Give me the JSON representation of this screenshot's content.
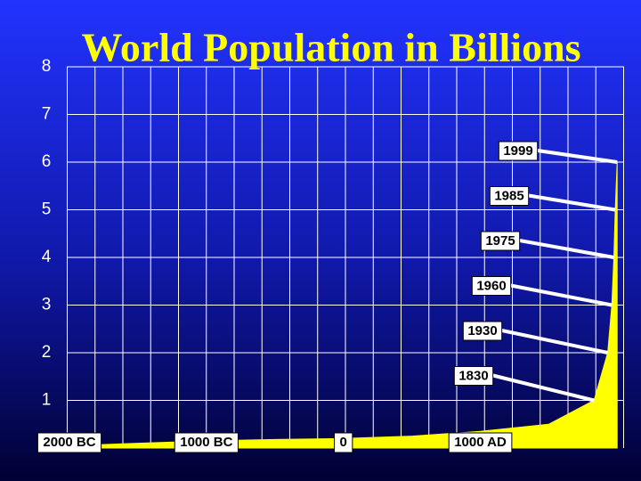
{
  "chart_data": {
    "type": "area",
    "title": "World Population in Billions",
    "x": [
      -2000,
      -1500,
      -1000,
      -500,
      0,
      500,
      1000,
      1500,
      1830,
      1930,
      1960,
      1975,
      1985,
      1999
    ],
    "values": [
      0.05,
      0.1,
      0.15,
      0.18,
      0.2,
      0.25,
      0.35,
      0.5,
      1,
      2,
      3,
      4,
      5,
      6
    ],
    "color": "#ffff00",
    "xlim": [
      -2000,
      2030
    ],
    "xticks": [
      {
        "value": -2000,
        "label": "2000 BC"
      },
      {
        "value": -1000,
        "label": "1000 BC"
      },
      0,
      {
        "value": 1000,
        "label": "1000 AD"
      }
    ],
    "ylim": [
      0,
      8
    ],
    "yticks": [
      1,
      2,
      3,
      4,
      5,
      6,
      7,
      8
    ],
    "grid": true
  }
}
